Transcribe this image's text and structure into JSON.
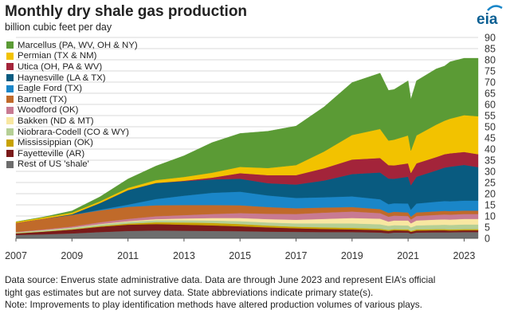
{
  "header": {
    "title": "Monthly dry shale gas production",
    "subtitle": "billion cubic feet per day",
    "logo": "eia"
  },
  "chart_data": {
    "type": "area",
    "stacked": true,
    "title": "Monthly dry shale gas production",
    "ylabel": "billion cubic feet per day",
    "xlabel": "",
    "x_range": [
      2007.0,
      2023.5
    ],
    "ylim": [
      0,
      90
    ],
    "y_ticks": [
      0,
      5,
      10,
      15,
      20,
      25,
      30,
      35,
      40,
      45,
      50,
      55,
      60,
      65,
      70,
      75,
      80,
      85,
      90
    ],
    "x_ticks": [
      "2007",
      "2009",
      "2011",
      "2013",
      "2015",
      "2017",
      "2019",
      "2021",
      "2023"
    ],
    "y_axis_side": "right",
    "grid": true,
    "legend_position": "top-left",
    "x": [
      2007.0,
      2008.0,
      2009.0,
      2010.0,
      2011.0,
      2012.0,
      2013.0,
      2014.0,
      2015.0,
      2016.0,
      2017.0,
      2018.0,
      2019.0,
      2020.0,
      2020.3,
      2020.5,
      2021.0,
      2021.1,
      2021.3,
      2022.0,
      2022.3,
      2022.5,
      2023.0,
      2023.5
    ],
    "series": [
      {
        "name": "Rest of US 'shale'",
        "color": "#6d6d6d",
        "values": [
          1.5,
          1.8,
          2.2,
          2.8,
          3.3,
          3.5,
          3.4,
          3.3,
          3.2,
          3.0,
          2.9,
          2.8,
          2.8,
          2.6,
          2.3,
          2.6,
          2.6,
          2.1,
          2.6,
          2.7,
          2.7,
          2.7,
          2.8,
          2.8
        ]
      },
      {
        "name": "Fayetteville (AR)",
        "color": "#7a1a1a",
        "values": [
          0.7,
          1.2,
          1.7,
          2.4,
          2.8,
          2.9,
          2.7,
          2.5,
          2.2,
          1.9,
          1.6,
          1.4,
          1.2,
          1.1,
          1.0,
          1.0,
          0.9,
          0.8,
          0.9,
          0.9,
          0.9,
          0.8,
          0.8,
          0.8
        ]
      },
      {
        "name": "Mississippian (OK)",
        "color": "#c8a200",
        "values": [
          0.1,
          0.1,
          0.2,
          0.3,
          0.5,
          0.8,
          1.0,
          1.1,
          1.0,
          0.8,
          0.7,
          0.7,
          0.7,
          0.6,
          0.5,
          0.5,
          0.5,
          0.4,
          0.5,
          0.5,
          0.5,
          0.5,
          0.5,
          0.5
        ]
      },
      {
        "name": "Niobrara-Codell (CO & WY)",
        "color": "#b5cf95",
        "values": [
          0.4,
          0.5,
          0.6,
          0.7,
          0.8,
          0.9,
          1.0,
          1.1,
          1.3,
          1.4,
          1.5,
          1.8,
          2.0,
          2.0,
          1.8,
          1.8,
          1.8,
          1.6,
          1.8,
          1.9,
          2.0,
          2.0,
          2.1,
          2.1
        ]
      },
      {
        "name": "Bakken (ND & MT)",
        "color": "#f8e7a1",
        "values": [
          0.0,
          0.1,
          0.1,
          0.2,
          0.3,
          0.5,
          0.8,
          1.1,
          1.4,
          1.5,
          1.6,
          2.0,
          2.4,
          2.5,
          1.9,
          2.1,
          2.2,
          1.8,
          2.2,
          2.4,
          2.4,
          2.4,
          2.5,
          2.5
        ]
      },
      {
        "name": "Woodford (OK)",
        "color": "#c87a92",
        "values": [
          0.2,
          0.3,
          0.5,
          0.8,
          1.0,
          1.3,
          1.5,
          1.8,
          2.2,
          2.4,
          2.6,
          2.8,
          2.9,
          2.5,
          2.2,
          2.2,
          2.0,
          1.7,
          2.0,
          2.1,
          2.2,
          2.2,
          2.2,
          2.2
        ]
      },
      {
        "name": "Barnett (TX)",
        "color": "#c06a2a",
        "values": [
          4.0,
          4.8,
          5.2,
          5.3,
          5.4,
          4.9,
          4.5,
          4.0,
          3.5,
          3.0,
          2.6,
          2.3,
          2.0,
          1.8,
          1.7,
          1.7,
          1.6,
          1.3,
          1.6,
          1.6,
          1.6,
          1.6,
          1.5,
          1.5
        ]
      },
      {
        "name": "Eagle Ford (TX)",
        "color": "#1a86c8",
        "values": [
          0.0,
          0.0,
          0.0,
          0.3,
          1.0,
          2.8,
          4.2,
          5.5,
          6.1,
          5.2,
          4.6,
          4.6,
          4.8,
          4.4,
          3.9,
          3.8,
          4.0,
          3.1,
          4.0,
          4.3,
          4.4,
          4.4,
          4.5,
          4.5
        ]
      },
      {
        "name": "Haynesville (LA & TX)",
        "color": "#095b80",
        "values": [
          0.0,
          0.0,
          0.3,
          3.0,
          6.5,
          7.2,
          6.5,
          6.0,
          5.8,
          5.5,
          6.0,
          7.5,
          10.0,
          12.0,
          11.5,
          11.0,
          12.0,
          11.0,
          12.0,
          14.0,
          15.0,
          15.5,
          16.0,
          15.0
        ]
      },
      {
        "name": "Utica (OH, PA & WV)",
        "color": "#a3243a",
        "values": [
          0.0,
          0.0,
          0.0,
          0.0,
          0.0,
          0.0,
          0.2,
          0.8,
          2.5,
          3.6,
          4.2,
          5.5,
          6.5,
          6.5,
          6.0,
          6.0,
          6.0,
          5.5,
          6.0,
          6.0,
          6.0,
          6.0,
          5.8,
          5.8
        ]
      },
      {
        "name": "Permian (TX & NM)",
        "color": "#f2c200",
        "values": [
          0.5,
          0.6,
          0.7,
          0.8,
          1.0,
          1.3,
          1.7,
          2.2,
          2.8,
          3.2,
          4.5,
          7.5,
          11.0,
          13.0,
          11.0,
          11.5,
          12.5,
          10.0,
          12.5,
          14.5,
          15.0,
          15.5,
          16.5,
          17.0
        ]
      },
      {
        "name": "Marcellus (PA, WV, OH & NY)",
        "color": "#5b9b35",
        "values": [
          0.0,
          0.2,
          0.8,
          2.0,
          4.0,
          6.3,
          9.5,
          13.5,
          15.0,
          16.5,
          17.5,
          20.0,
          23.5,
          25.0,
          22.5,
          22.5,
          24.5,
          23.0,
          24.5,
          25.0,
          24.5,
          25.5,
          25.5,
          26.0
        ]
      }
    ]
  },
  "footer": {
    "source_line1": "Data source: Enverus state administrative data. Data are through June 2023 and represent EIA’s official",
    "source_line2": "tight gas estimates but are not survey data. State abbreviations indicate primary state(s).",
    "source_line3": "Note: Improvements to play identification methods have altered production volumes of various plays."
  }
}
